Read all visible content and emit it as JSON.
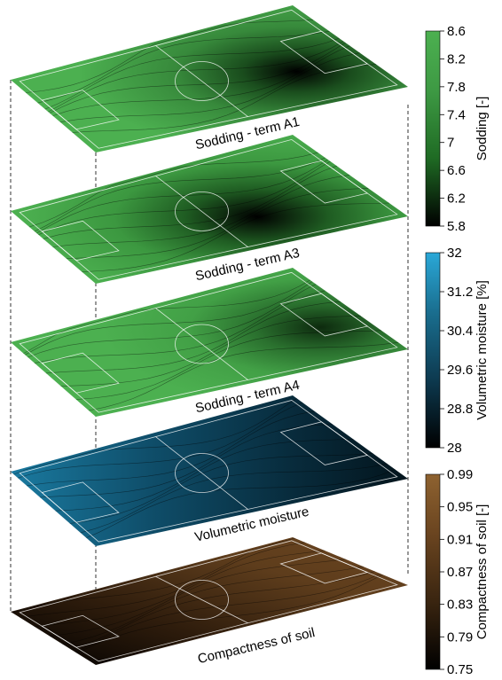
{
  "chart_data": [
    {
      "type": "heatmap",
      "title": "Sodding - term A1",
      "colorbar_label": "Sodding [-]",
      "range": [
        5.8,
        8.6
      ],
      "ticks": [
        "5.8",
        "6.2",
        "6.6",
        "7",
        "7.4",
        "7.8",
        "8.2",
        "8.6"
      ],
      "colors": [
        "#000000",
        "#1f6b24",
        "#3e9a44",
        "#4cb050"
      ]
    },
    {
      "type": "heatmap",
      "title": "Sodding - term A3",
      "colorbar_label": "Sodding [-]",
      "range": [
        5.8,
        8.6
      ]
    },
    {
      "type": "heatmap",
      "title": "Sodding - term A4",
      "colorbar_label": "Sodding [-]",
      "range": [
        5.8,
        8.6
      ]
    },
    {
      "type": "heatmap",
      "title": "Volumetric moisture",
      "colorbar_label": "Volumetric moisture [%]",
      "range": [
        28,
        32
      ],
      "ticks": [
        "28",
        "28.8",
        "29.6",
        "30.4",
        "31.2",
        "32"
      ],
      "colors": [
        "#000000",
        "#0d3a50",
        "#1a6f90",
        "#2aa8d8"
      ]
    },
    {
      "type": "heatmap",
      "title": "Compactness of soil",
      "colorbar_label": "Compactness of soil [-]",
      "range": [
        0.75,
        0.99
      ],
      "ticks": [
        "0.75",
        "0.79",
        "0.83",
        "0.87",
        "0.91",
        "0.95",
        "0.99"
      ],
      "colors": [
        "#000000",
        "#3a2510",
        "#6b4520",
        "#8e6230"
      ]
    }
  ]
}
